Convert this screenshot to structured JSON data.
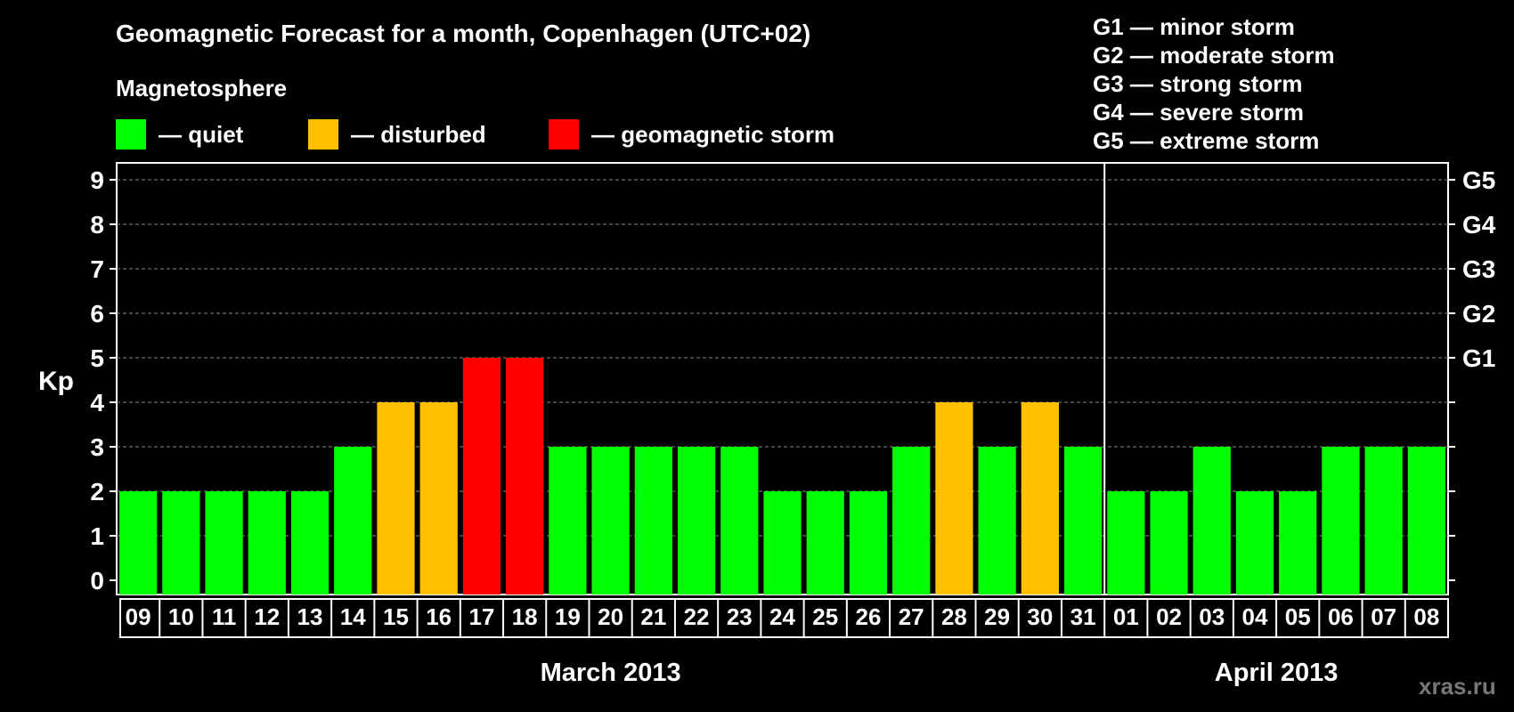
{
  "header": {
    "title": "Geomagnetic Forecast for a month, Copenhagen (UTC+02)",
    "subtitle": "Magnetosphere"
  },
  "legend": {
    "items": [
      {
        "label": "— quiet",
        "color": "#00ff00"
      },
      {
        "label": "— disturbed",
        "color": "#ffc000"
      },
      {
        "label": "— geomagnetic storm",
        "color": "#ff0000"
      }
    ]
  },
  "storm_legend": [
    "G1 — minor storm",
    "G2 — moderate storm",
    "G3 — strong storm",
    "G4 — severe storm",
    "G5 — extreme storm"
  ],
  "watermark": "xras.ru",
  "chart_data": {
    "type": "bar",
    "ylabel": "Kp",
    "ylim": [
      0,
      9
    ],
    "yticks": [
      "0",
      "1",
      "2",
      "3",
      "4",
      "5",
      "6",
      "7",
      "8",
      "9"
    ],
    "right_labels": [
      {
        "value": 5,
        "label": "G1"
      },
      {
        "value": 6,
        "label": "G2"
      },
      {
        "value": 7,
        "label": "G3"
      },
      {
        "value": 8,
        "label": "G4"
      },
      {
        "value": 9,
        "label": "G5"
      }
    ],
    "grid": true,
    "categories": [
      "09",
      "10",
      "11",
      "12",
      "13",
      "14",
      "15",
      "16",
      "17",
      "18",
      "19",
      "20",
      "21",
      "22",
      "23",
      "24",
      "25",
      "26",
      "27",
      "28",
      "29",
      "30",
      "31",
      "01",
      "02",
      "03",
      "04",
      "05",
      "06",
      "07",
      "08"
    ],
    "values": [
      2,
      2,
      2,
      2,
      2,
      3,
      4,
      4,
      5,
      5,
      3,
      3,
      3,
      3,
      3,
      2,
      2,
      2,
      3,
      4,
      3,
      4,
      3,
      2,
      2,
      3,
      2,
      2,
      3,
      3,
      3
    ],
    "colors": [
      "#00ff00",
      "#00ff00",
      "#00ff00",
      "#00ff00",
      "#00ff00",
      "#00ff00",
      "#ffc000",
      "#ffc000",
      "#ff0000",
      "#ff0000",
      "#00ff00",
      "#00ff00",
      "#00ff00",
      "#00ff00",
      "#00ff00",
      "#00ff00",
      "#00ff00",
      "#00ff00",
      "#00ff00",
      "#ffc000",
      "#00ff00",
      "#ffc000",
      "#00ff00",
      "#00ff00",
      "#00ff00",
      "#00ff00",
      "#00ff00",
      "#00ff00",
      "#00ff00",
      "#00ff00",
      "#00ff00"
    ],
    "months": [
      {
        "label": "March 2013",
        "start": 0,
        "end": 23
      },
      {
        "label": "April 2013",
        "start": 23,
        "end": 31
      }
    ]
  }
}
